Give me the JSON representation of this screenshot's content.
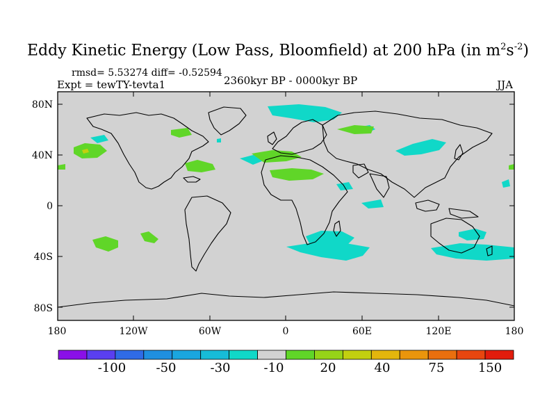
{
  "title": {
    "main": "Eddy Kinetic Energy (Low Pass, Bloomfield) at 200 hPa (in m",
    "sup1": "2",
    "mid": "s",
    "sup2": "-2",
    "end": ")"
  },
  "stats": {
    "rmsd": "rmsd= 5.53274 diff= -0.52594"
  },
  "experiment": "Expt = tewTY-tevta1",
  "period": "2360kyr BP - 0000kyr BP",
  "season": "JJA",
  "map": {
    "lat_labels": [
      "80N",
      "40N",
      "0",
      "40S",
      "80S"
    ],
    "lon_labels": [
      "180",
      "120W",
      "60W",
      "0",
      "60E",
      "120E",
      "180"
    ],
    "ocean_color": "#d2d2d2",
    "coast_color": "#000000"
  },
  "colorbar": {
    "colors": [
      "#8a10e8",
      "#5a3ff0",
      "#2f6be6",
      "#1f8fe0",
      "#1aa6df",
      "#17bcd8",
      "#10d8c8",
      "#d2d2d2",
      "#60d628",
      "#96d418",
      "#c2d00f",
      "#e3b60c",
      "#ea950c",
      "#ea6f0e",
      "#e8460f",
      "#e21c0c"
    ],
    "labels": [
      "-100",
      "-50",
      "-30",
      "-10",
      "20",
      "40",
      "75",
      "150"
    ]
  }
}
